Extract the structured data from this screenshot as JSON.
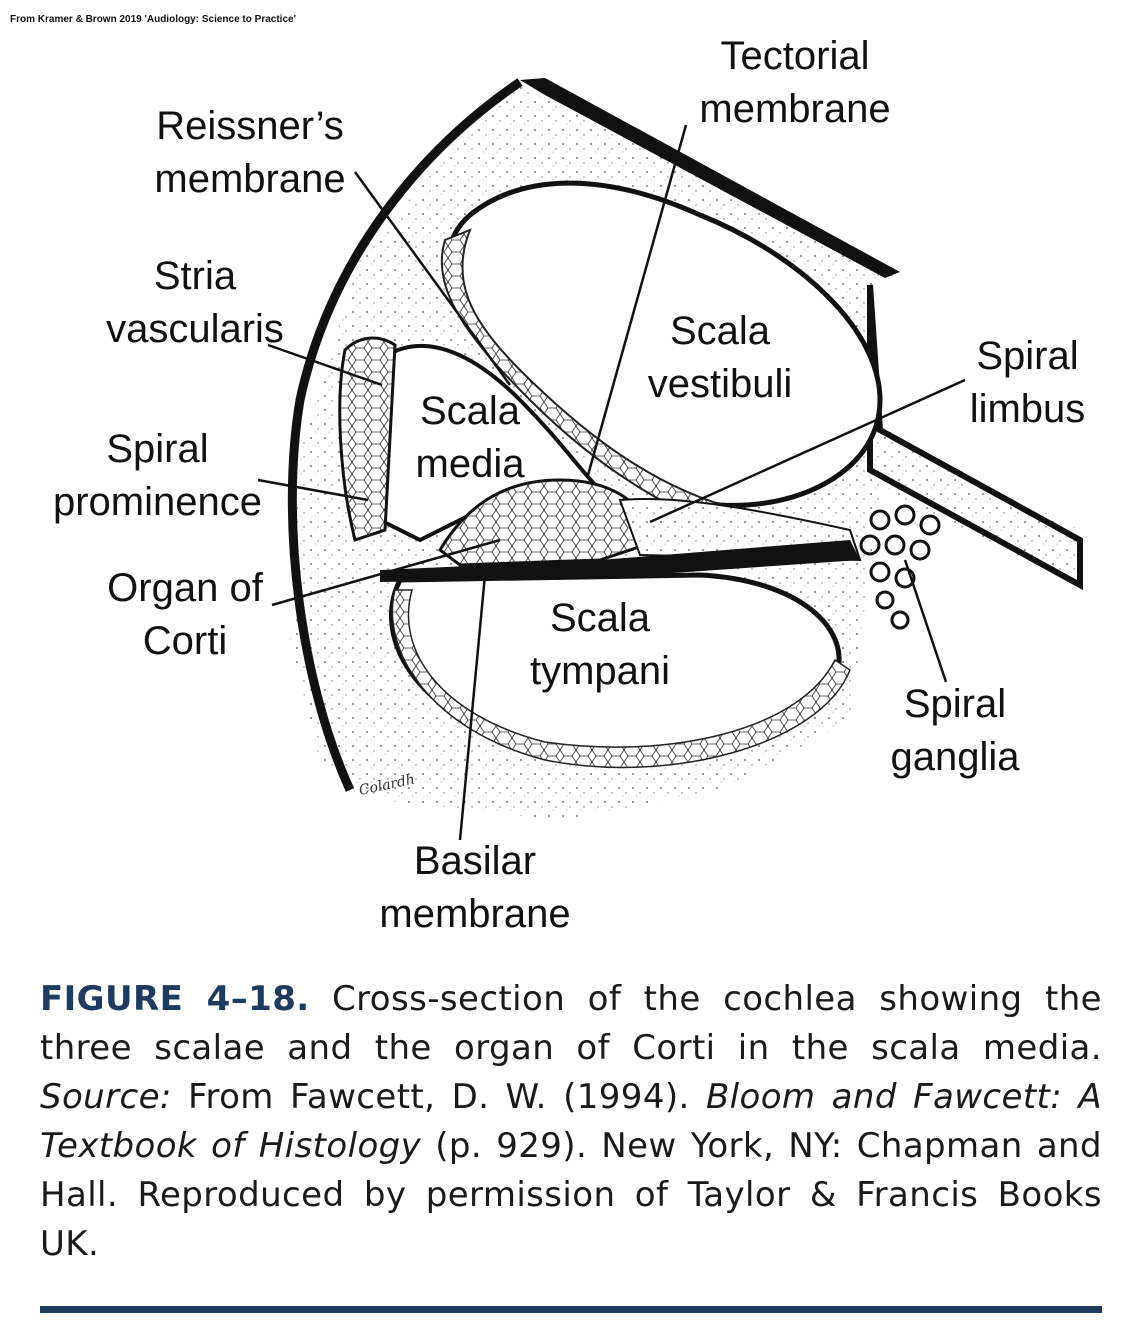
{
  "source_note": "From Kramer & Brown 2019 'Audiology: Science to Practice'",
  "labels": {
    "tectorial_membrane": [
      "Tectorial",
      "membrane"
    ],
    "reissners_membrane": [
      "Reissner’s",
      "membrane"
    ],
    "stria_vascularis": [
      "Stria",
      "vascularis"
    ],
    "scala_vestibuli": [
      "Scala",
      "vestibuli"
    ],
    "spiral_limbus": [
      "Spiral",
      "limbus"
    ],
    "scala_media": [
      "Scala",
      "media"
    ],
    "spiral_prominence": [
      "Spiral",
      "prominence"
    ],
    "organ_of_corti": [
      "Organ of",
      "Corti"
    ],
    "scala_tympani": [
      "Scala",
      "tympani"
    ],
    "spiral_ganglia": [
      "Spiral",
      "ganglia"
    ],
    "basilar_membrane": [
      "Basilar",
      "membrane"
    ]
  },
  "artist_signature": "Colardh",
  "caption": {
    "figure_number": "FIGURE 4–18.",
    "text_1": " Cross-section of the cochlea showing the three scalae and the organ of Corti in the scala media. ",
    "source_label": "Source:",
    "text_2": " From Fawcett, D. W. (1994). ",
    "book_title": "Bloom and Fawcett: A Textbook of Histology",
    "text_3": " (p. 929). New York, NY: Chapman and Hall. Reproduced by permission of Taylor & Francis Books UK."
  },
  "colors": {
    "accent": "#1d3a5f",
    "ink": "#111111"
  }
}
